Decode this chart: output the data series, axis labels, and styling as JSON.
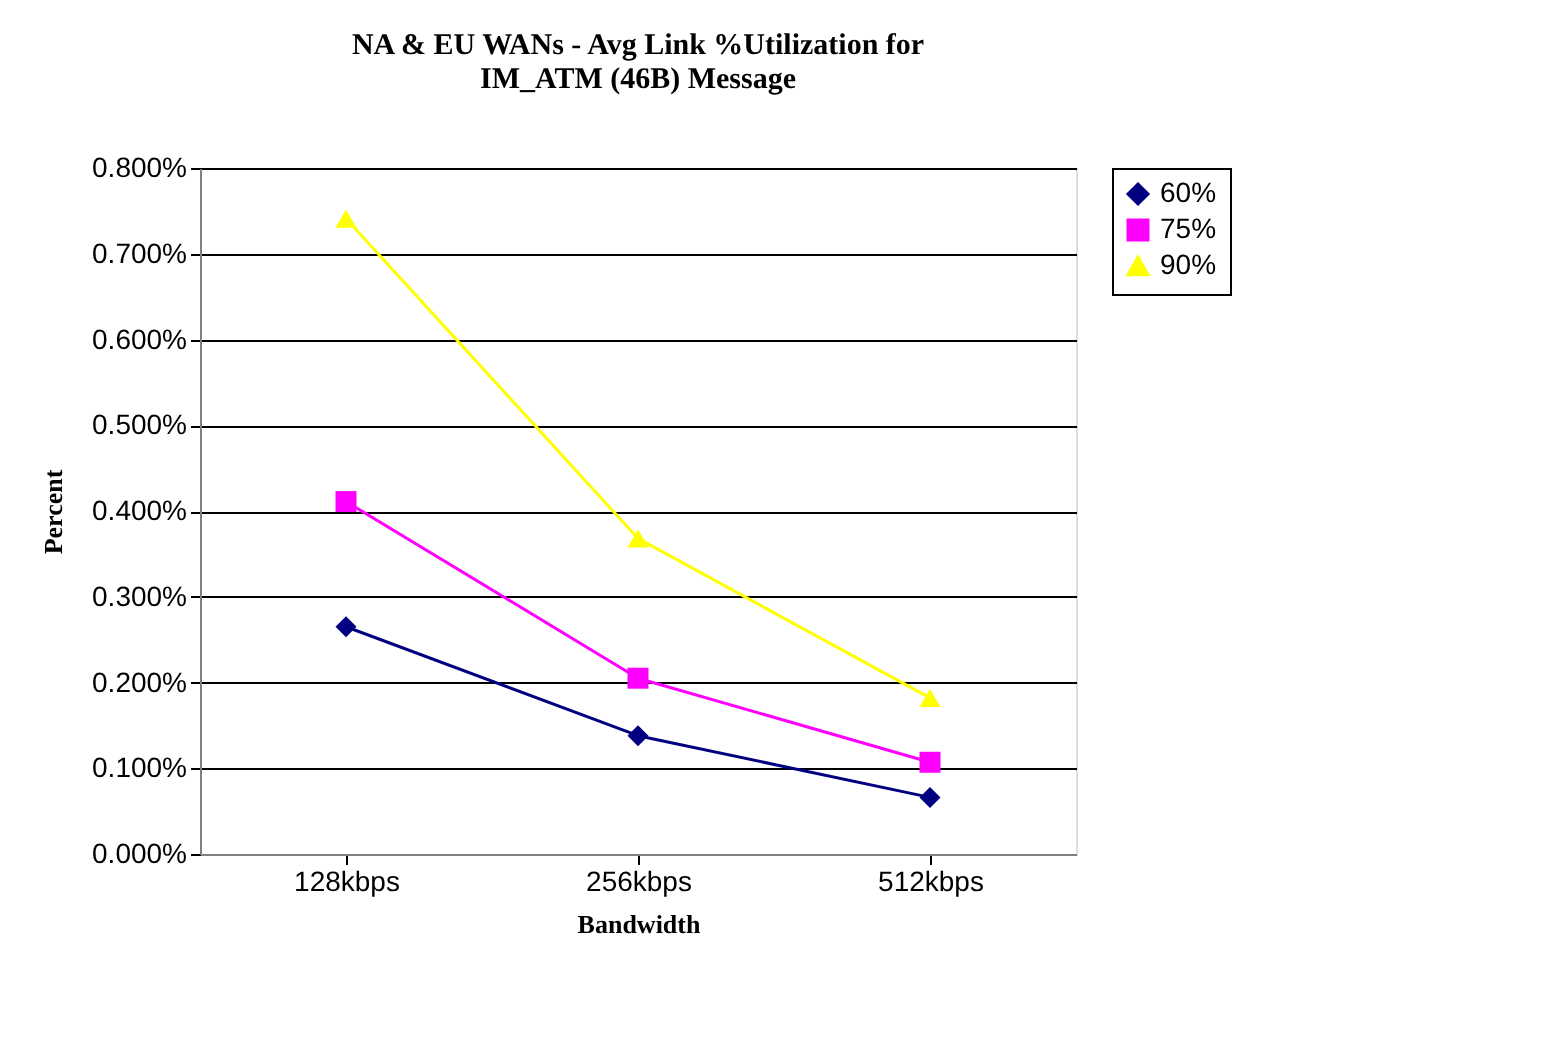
{
  "chart_data": {
    "type": "line",
    "title": [
      "NA & EU WANs - Avg Link %Utilization for",
      "IM_ATM (46B) Message"
    ],
    "xlabel": "Bandwidth",
    "ylabel": "Percent",
    "categories": [
      "128kbps",
      "256kbps",
      "512kbps"
    ],
    "series": [
      {
        "name": "60%",
        "color": "#000080",
        "marker": "diamond",
        "values": [
          0.265,
          0.138,
          0.066
        ]
      },
      {
        "name": "75%",
        "color": "#ff00ff",
        "marker": "square",
        "values": [
          0.411,
          0.205,
          0.107
        ]
      },
      {
        "name": "90%",
        "color": "#ffff00",
        "marker": "triangle",
        "values": [
          0.741,
          0.368,
          0.182
        ]
      }
    ],
    "ylim": [
      0,
      0.8
    ],
    "yticks": [
      {
        "value": 0,
        "label": "0.000%"
      },
      {
        "value": 0.1,
        "label": "0.100%"
      },
      {
        "value": 0.2,
        "label": "0.200%"
      },
      {
        "value": 0.3,
        "label": "0.300%"
      },
      {
        "value": 0.4,
        "label": "0.400%"
      },
      {
        "value": 0.5,
        "label": "0.500%"
      },
      {
        "value": 0.6,
        "label": "0.600%"
      },
      {
        "value": 0.7,
        "label": "0.700%"
      },
      {
        "value": 0.8,
        "label": "0.800%"
      }
    ],
    "grid": "y",
    "legend": "right",
    "line_style": "solid"
  }
}
